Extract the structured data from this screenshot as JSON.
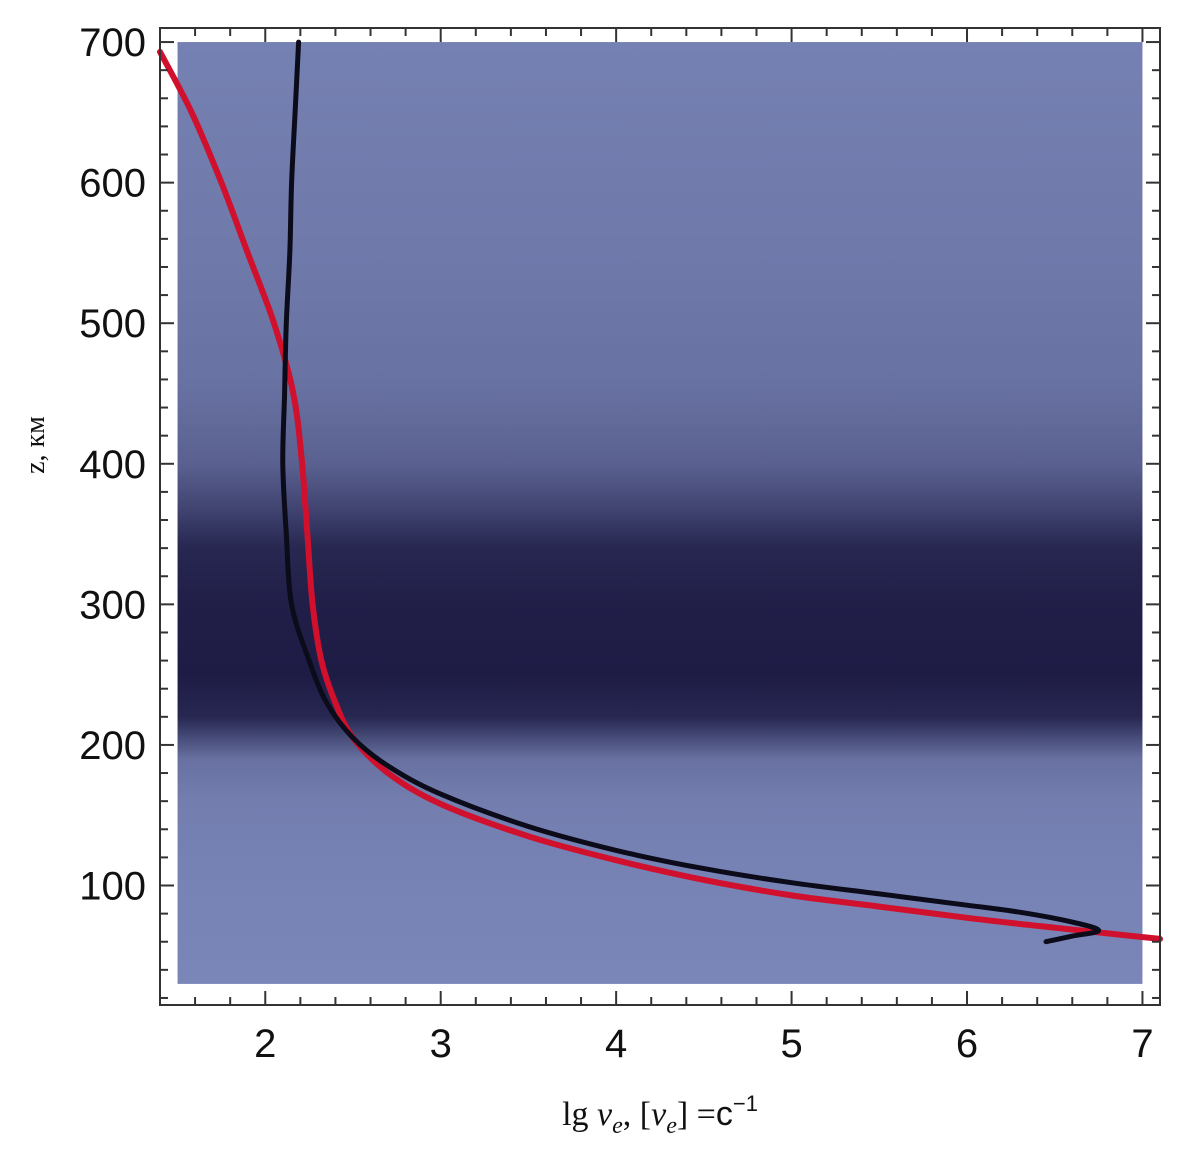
{
  "chart_data": {
    "type": "line",
    "xlabel": {
      "prefix": "lg ",
      "nu": "ν",
      "sub": "e",
      "sep": ",  [",
      "mid": "] =",
      "unit": "c",
      "exp": "−1"
    },
    "ylabel": "z, км",
    "xlim": [
      1.4,
      7.1
    ],
    "ylim": [
      15,
      710
    ],
    "x_ticks": [
      2,
      3,
      4,
      5,
      6,
      7
    ],
    "x_tick_labels": [
      "2",
      "3",
      "4",
      "5",
      "6",
      "7"
    ],
    "y_ticks": [
      100,
      200,
      300,
      400,
      500,
      600,
      700
    ],
    "y_tick_labels": [
      "100",
      "200",
      "300",
      "400",
      "500",
      "600",
      "700"
    ],
    "grid": false,
    "legend": "none",
    "background_density": {
      "description_colors": [
        "#7a86b8",
        "#1e1c45"
      ],
      "x_range": [
        1.5,
        7.0
      ],
      "y_range": [
        30,
        700
      ],
      "profile": [
        {
          "z": 30,
          "level": 0.0
        },
        {
          "z": 100,
          "level": 0.03
        },
        {
          "z": 160,
          "level": 0.08
        },
        {
          "z": 190,
          "level": 0.2
        },
        {
          "z": 205,
          "level": 0.55
        },
        {
          "z": 220,
          "level": 0.9
        },
        {
          "z": 250,
          "level": 1.0
        },
        {
          "z": 300,
          "level": 0.97
        },
        {
          "z": 340,
          "level": 0.9
        },
        {
          "z": 370,
          "level": 0.6
        },
        {
          "z": 400,
          "level": 0.35
        },
        {
          "z": 460,
          "level": 0.18
        },
        {
          "z": 550,
          "level": 0.12
        },
        {
          "z": 700,
          "level": 0.05
        }
      ]
    },
    "series": [
      {
        "color": "#d0102c",
        "points": [
          [
            7.1,
            62
          ],
          [
            6.5,
            70
          ],
          [
            6.0,
            77
          ],
          [
            5.5,
            85
          ],
          [
            5.0,
            93
          ],
          [
            4.5,
            104
          ],
          [
            4.0,
            118
          ],
          [
            3.5,
            135
          ],
          [
            3.0,
            158
          ],
          [
            2.7,
            180
          ],
          [
            2.5,
            205
          ],
          [
            2.4,
            230
          ],
          [
            2.32,
            260
          ],
          [
            2.27,
            300
          ],
          [
            2.24,
            350
          ],
          [
            2.21,
            400
          ],
          [
            2.16,
            450
          ],
          [
            2.05,
            500
          ],
          [
            1.9,
            550
          ],
          [
            1.75,
            600
          ],
          [
            1.58,
            650
          ],
          [
            1.4,
            693
          ]
        ]
      },
      {
        "color": "#0b0b1a",
        "points": [
          [
            6.45,
            60
          ],
          [
            6.6,
            64
          ],
          [
            6.75,
            68
          ],
          [
            6.6,
            74
          ],
          [
            6.3,
            81
          ],
          [
            6.0,
            86
          ],
          [
            5.5,
            94
          ],
          [
            5.0,
            102
          ],
          [
            4.5,
            112
          ],
          [
            4.0,
            125
          ],
          [
            3.5,
            142
          ],
          [
            3.0,
            165
          ],
          [
            2.7,
            185
          ],
          [
            2.5,
            205
          ],
          [
            2.35,
            230
          ],
          [
            2.25,
            260
          ],
          [
            2.15,
            300
          ],
          [
            2.12,
            350
          ],
          [
            2.1,
            400
          ],
          [
            2.11,
            450
          ],
          [
            2.12,
            500
          ],
          [
            2.14,
            550
          ],
          [
            2.15,
            600
          ],
          [
            2.17,
            650
          ],
          [
            2.19,
            700
          ]
        ]
      }
    ]
  }
}
